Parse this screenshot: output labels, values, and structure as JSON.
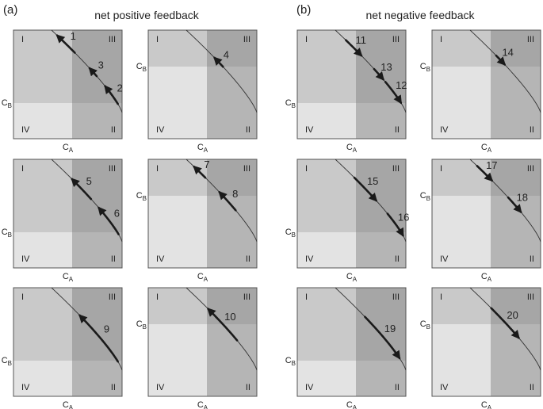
{
  "panel_a_label": "(a)",
  "panel_b_label": "(b)",
  "title_a": "net positive feedback",
  "title_b": "net negative feedback",
  "axis_x_main": "C",
  "axis_x_sub": "A",
  "axis_y_main": "C",
  "axis_y_sub": "B",
  "quadrants": [
    "I",
    "II",
    "III",
    "IV"
  ],
  "colors": {
    "q1": "#c9c9c9",
    "q2": "#b5b5b5",
    "q3": "#a6a6a6",
    "q4": "#e3e3e3",
    "border": "#555555",
    "curve": "#333333",
    "arrow": "#1a1a1a"
  },
  "panels": [
    {
      "group": "a",
      "col": 0,
      "row": 0,
      "split": "low",
      "arrows": [
        {
          "label": "1",
          "t0": 0.33,
          "t1": 0.08
        },
        {
          "label": "3",
          "t0": 0.64,
          "t1": 0.54
        },
        {
          "label": "2",
          "t0": 0.94,
          "t1": 0.76
        }
      ]
    },
    {
      "group": "a",
      "col": 1,
      "row": 0,
      "split": "high",
      "arrows": [
        {
          "label": "4",
          "t0": 0.52,
          "t1": 0.4
        }
      ]
    },
    {
      "group": "a",
      "col": 0,
      "row": 1,
      "split": "low",
      "arrows": [
        {
          "label": "5",
          "t0": 0.56,
          "t1": 0.29
        },
        {
          "label": "6",
          "t0": 0.95,
          "t1": 0.67
        }
      ]
    },
    {
      "group": "a",
      "col": 1,
      "row": 1,
      "split": "high",
      "arrows": [
        {
          "label": "7",
          "t0": 0.27,
          "t1": 0.11
        },
        {
          "label": "8",
          "t0": 0.7,
          "t1": 0.47
        }
      ]
    },
    {
      "group": "a",
      "col": 0,
      "row": 2,
      "split": "low",
      "arrows": [
        {
          "label": "9",
          "t0": 0.94,
          "t1": 0.4
        }
      ]
    },
    {
      "group": "a",
      "col": 1,
      "row": 2,
      "split": "high",
      "arrows": [
        {
          "label": "10",
          "t0": 0.72,
          "t1": 0.31
        }
      ]
    },
    {
      "group": "b",
      "col": 0,
      "row": 0,
      "split": "low",
      "arrows": [
        {
          "label": "11",
          "t0": 0.15,
          "t1": 0.37
        },
        {
          "label": "13",
          "t0": 0.55,
          "t1": 0.68
        },
        {
          "label": "12",
          "t0": 0.71,
          "t1": 0.93
        }
      ]
    },
    {
      "group": "b",
      "col": 1,
      "row": 0,
      "split": "high",
      "arrows": [
        {
          "label": "14",
          "t0": 0.37,
          "t1": 0.49
        }
      ]
    },
    {
      "group": "b",
      "col": 0,
      "row": 1,
      "split": "low",
      "arrows": [
        {
          "label": "15",
          "t0": 0.27,
          "t1": 0.58
        },
        {
          "label": "16",
          "t0": 0.74,
          "t1": 0.96
        }
      ]
    },
    {
      "group": "b",
      "col": 1,
      "row": 1,
      "split": "high",
      "arrows": [
        {
          "label": "17",
          "t0": 0.1,
          "t1": 0.31
        },
        {
          "label": "18",
          "t0": 0.54,
          "t1": 0.72
        }
      ]
    },
    {
      "group": "b",
      "col": 0,
      "row": 2,
      "split": "low",
      "arrows": [
        {
          "label": "19",
          "t0": 0.42,
          "t1": 0.91
        }
      ]
    },
    {
      "group": "b",
      "col": 1,
      "row": 2,
      "split": "high",
      "arrows": [
        {
          "label": "20",
          "t0": 0.3,
          "t1": 0.69
        }
      ]
    }
  ]
}
